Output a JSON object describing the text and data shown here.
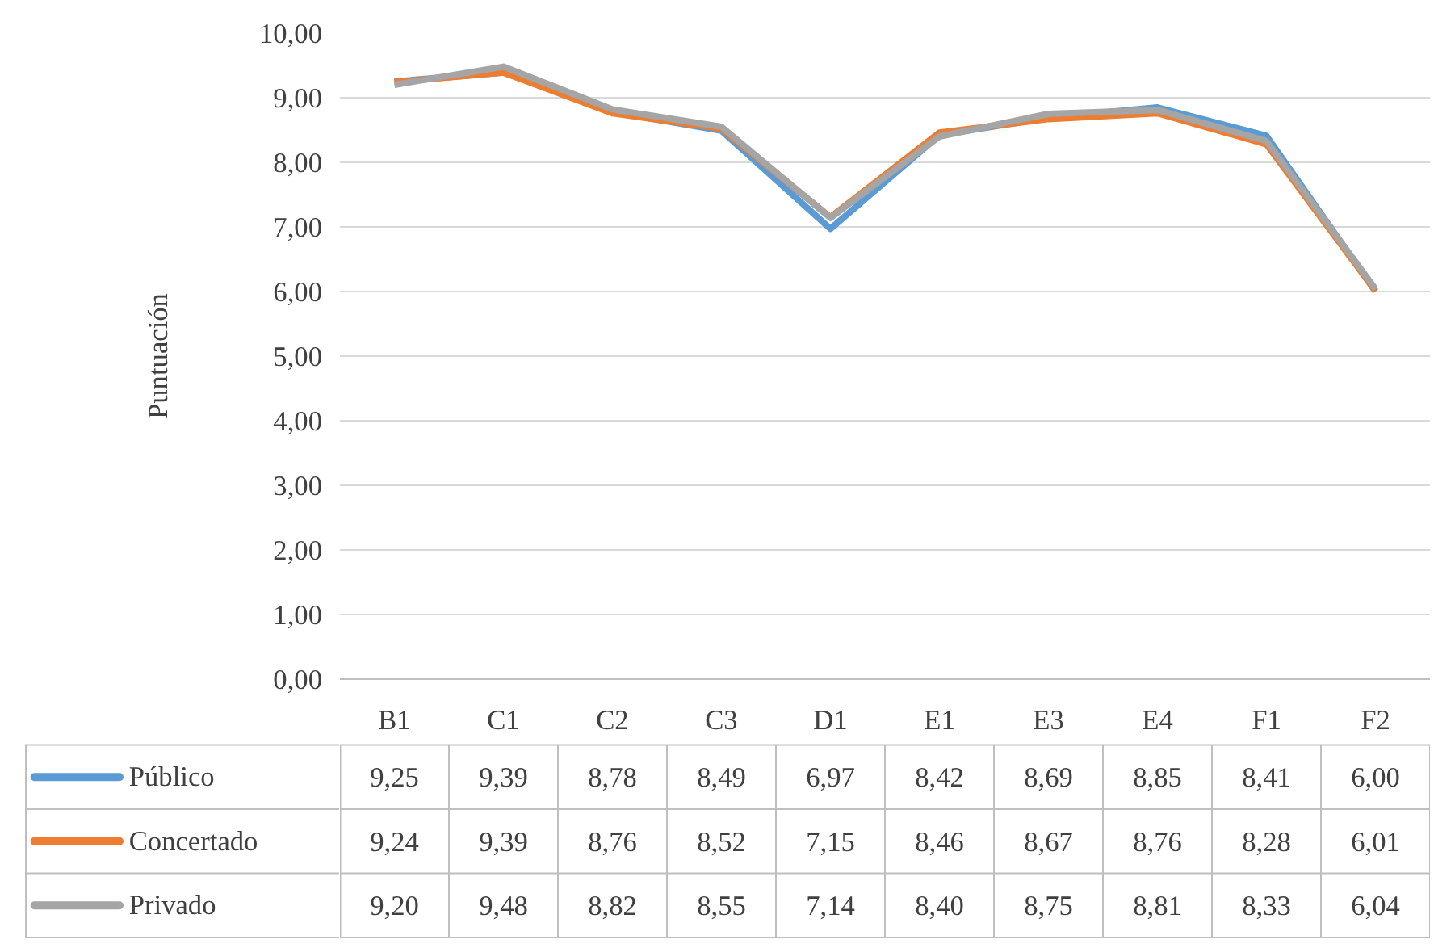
{
  "chart_data": {
    "type": "line",
    "ylabel": "Puntuación",
    "categories": [
      "B1",
      "C1",
      "C2",
      "C3",
      "D1",
      "E1",
      "E3",
      "E4",
      "F1",
      "F2"
    ],
    "series": [
      {
        "name": "Público",
        "color": "#5b9bd5",
        "values": [
          9.25,
          9.39,
          8.78,
          8.49,
          6.97,
          8.42,
          8.69,
          8.85,
          8.41,
          6.0
        ],
        "value_labels": [
          "9,25",
          "9,39",
          "8,78",
          "8,49",
          "6,97",
          "8,42",
          "8,69",
          "8,85",
          "8,41",
          "6,00"
        ]
      },
      {
        "name": "Concertado",
        "color": "#ed7d31",
        "values": [
          9.24,
          9.39,
          8.76,
          8.52,
          7.15,
          8.46,
          8.67,
          8.76,
          8.28,
          6.01
        ],
        "value_labels": [
          "9,24",
          "9,39",
          "8,76",
          "8,52",
          "7,15",
          "8,46",
          "8,67",
          "8,76",
          "8,28",
          "6,01"
        ]
      },
      {
        "name": "Privado",
        "color": "#a5a5a5",
        "values": [
          9.2,
          9.48,
          8.82,
          8.55,
          7.14,
          8.4,
          8.75,
          8.81,
          8.33,
          6.04
        ],
        "value_labels": [
          "9,20",
          "9,48",
          "8,82",
          "8,55",
          "7,14",
          "8,40",
          "8,75",
          "8,81",
          "8,33",
          "6,04"
        ]
      }
    ],
    "ylim": [
      0,
      10
    ],
    "yticks": [
      {
        "value": 0,
        "label": "0,00"
      },
      {
        "value": 1,
        "label": "1,00"
      },
      {
        "value": 2,
        "label": "2,00"
      },
      {
        "value": 3,
        "label": "3,00"
      },
      {
        "value": 4,
        "label": "4,00"
      },
      {
        "value": 5,
        "label": "5,00"
      },
      {
        "value": 6,
        "label": "6,00"
      },
      {
        "value": 7,
        "label": "7,00"
      },
      {
        "value": 8,
        "label": "8,00"
      },
      {
        "value": 9,
        "label": "9,00"
      },
      {
        "value": 10,
        "label": "10,00"
      }
    ],
    "grid": "y",
    "legend": "bottom",
    "marker": "none",
    "line_style": "solid"
  }
}
